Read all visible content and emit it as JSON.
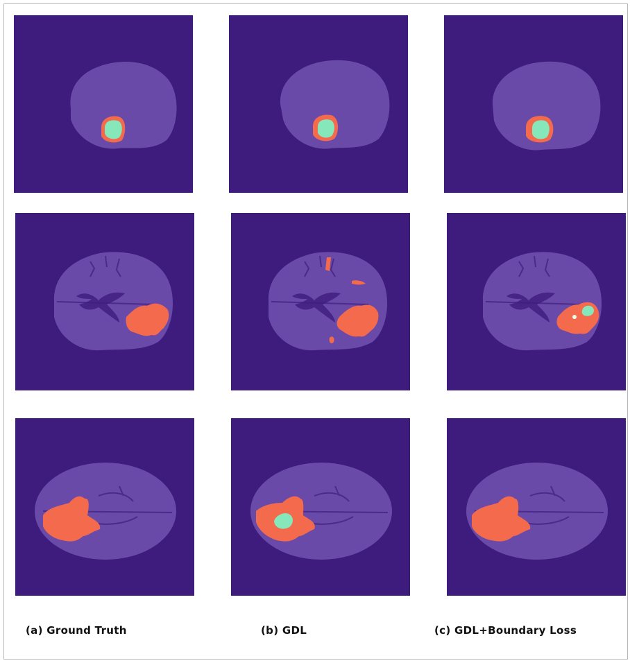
{
  "captions": {
    "col_a": "(a) Ground Truth",
    "col_b": "(b) GDL",
    "col_c": "(c) GDL+Boundary Loss"
  },
  "colors": {
    "background": "#3d1c7e",
    "brain": "#6a4aa8",
    "edema": "#f36a4c",
    "core": "#86e8ba"
  }
}
